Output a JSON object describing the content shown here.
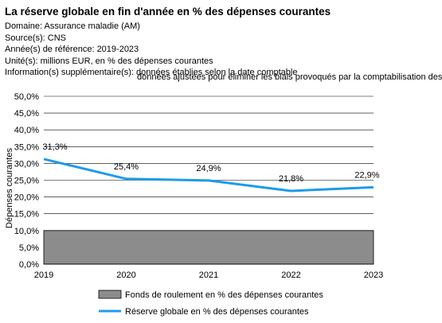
{
  "header": {
    "title": "La réserve globale en fin d'année en % des dépenses courantes",
    "domaine": "Domaine: Assurance maladie (AM)",
    "sources": "Source(s): CNS",
    "annees": "Année(s) de référence: 2019-2023",
    "unites": "Unité(s): millions EUR, en % des dépenses courantes",
    "info_1": "Information(s) supplémentaire(s): données établies selon la date comptable",
    "info_2": "données ajustées pour éliminer les biais provoqués par la comptabilisation des"
  },
  "colors": {
    "line": "#1e9be8",
    "area_fill": "#8c8c8c",
    "grid": "#000000"
  },
  "chart_data": {
    "type": "line",
    "categories": [
      "2019",
      "2020",
      "2021",
      "2022",
      "2023"
    ],
    "ylabel": "Dépenses courantes",
    "ylim": [
      0,
      50
    ],
    "ytick_labels": [
      "0,0%",
      "5,0%",
      "10,0%",
      "15,0%",
      "20,0%",
      "25,0%",
      "30,0%",
      "35,0%",
      "40,0%",
      "45,0%",
      "50,0%"
    ],
    "grid": true,
    "legend_position": "bottom",
    "series": [
      {
        "name": "Fonds de roulement en % des dépenses courantes",
        "kind": "area",
        "values": [
          10,
          10,
          10,
          10,
          10
        ]
      },
      {
        "name": "Réserve globale en % des dépenses courantes",
        "kind": "line",
        "values": [
          31.3,
          25.4,
          24.9,
          21.8,
          22.9
        ],
        "labels": [
          "31,3%",
          "25,4%",
          "24,9%",
          "21,8%",
          "22,9%"
        ]
      }
    ]
  }
}
